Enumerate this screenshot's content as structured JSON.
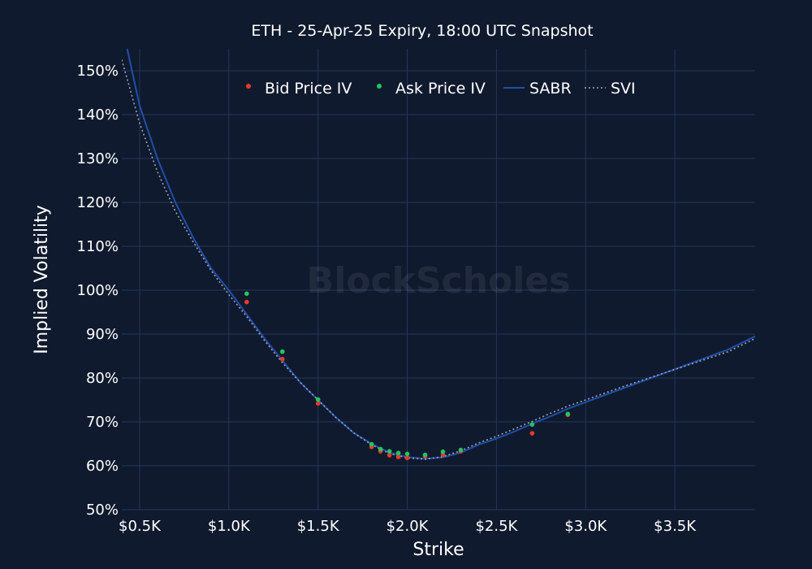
{
  "chart_data": {
    "type": "scatter",
    "title": "ETH - 25-Apr-25 Expiry, 18:00 UTC Snapshot",
    "xlabel": "Strike",
    "ylabel": "Implied Volatility",
    "watermark": "BlockScholes",
    "xlim": [
      0.4,
      3.95
    ],
    "ylim": [
      50,
      155
    ],
    "x_ticks": [
      {
        "value": 0.5,
        "label": "$0.5K"
      },
      {
        "value": 1.0,
        "label": "$1.0K"
      },
      {
        "value": 1.5,
        "label": "$1.5K"
      },
      {
        "value": 2.0,
        "label": "$2.0K"
      },
      {
        "value": 2.5,
        "label": "$2.5K"
      },
      {
        "value": 3.0,
        "label": "$3.0K"
      },
      {
        "value": 3.5,
        "label": "$3.5K"
      }
    ],
    "y_ticks": [
      {
        "value": 50,
        "label": "50%"
      },
      {
        "value": 60,
        "label": "60%"
      },
      {
        "value": 70,
        "label": "70%"
      },
      {
        "value": 80,
        "label": "80%"
      },
      {
        "value": 90,
        "label": "90%"
      },
      {
        "value": 100,
        "label": "100%"
      },
      {
        "value": 110,
        "label": "110%"
      },
      {
        "value": 120,
        "label": "120%"
      },
      {
        "value": 130,
        "label": "130%"
      },
      {
        "value": 140,
        "label": "140%"
      },
      {
        "value": 150,
        "label": "150%"
      }
    ],
    "legend_position": "top-center",
    "grid": true,
    "series": [
      {
        "name": "Bid Price IV",
        "kind": "markers",
        "color": "#e8392a",
        "x": [
          1.1,
          1.3,
          1.5,
          1.8,
          1.85,
          1.9,
          1.95,
          2.0,
          2.1,
          2.2,
          2.3,
          2.7,
          2.9
        ],
        "y": [
          97.3,
          84.3,
          74.2,
          64.3,
          63.3,
          62.4,
          62.0,
          61.8,
          62.2,
          62.5,
          63.3,
          67.4,
          71.6
        ]
      },
      {
        "name": "Ask Price IV",
        "kind": "markers",
        "color": "#22c55e",
        "x": [
          1.1,
          1.3,
          1.5,
          1.8,
          1.85,
          1.9,
          1.95,
          2.0,
          2.1,
          2.2,
          2.3,
          2.7,
          2.9
        ],
        "y": [
          99.2,
          86.0,
          75.1,
          64.9,
          63.8,
          63.3,
          62.9,
          62.7,
          62.5,
          63.2,
          63.6,
          69.4,
          71.8
        ]
      },
      {
        "name": "SABR",
        "kind": "line",
        "color": "#1f4fa8",
        "x": [
          0.43,
          0.5,
          0.6,
          0.7,
          0.8,
          0.9,
          1.0,
          1.1,
          1.2,
          1.3,
          1.4,
          1.5,
          1.6,
          1.7,
          1.8,
          1.9,
          2.0,
          2.1,
          2.2,
          2.3,
          2.4,
          2.5,
          2.6,
          2.7,
          2.8,
          2.9,
          3.0,
          3.2,
          3.4,
          3.6,
          3.8,
          3.95
        ],
        "y": [
          155,
          142,
          130,
          120,
          112,
          105,
          100,
          94.5,
          89,
          84,
          79,
          75,
          71,
          67.5,
          65,
          63,
          62,
          61.6,
          61.9,
          63,
          64.8,
          66.2,
          67.8,
          69.6,
          71.2,
          73,
          74.5,
          77.5,
          80.5,
          83.5,
          86.5,
          89.5
        ]
      },
      {
        "name": "SVI",
        "kind": "dotted-line",
        "color": "#9aa3b5",
        "x": [
          0.4,
          0.5,
          0.6,
          0.7,
          0.8,
          0.9,
          1.0,
          1.1,
          1.2,
          1.3,
          1.4,
          1.5,
          1.6,
          1.7,
          1.8,
          1.9,
          2.0,
          2.1,
          2.2,
          2.3,
          2.4,
          2.5,
          2.6,
          2.7,
          2.8,
          2.9,
          3.0,
          3.2,
          3.4,
          3.6,
          3.8,
          3.95
        ],
        "y": [
          152.5,
          138,
          127,
          118,
          111,
          104.5,
          99,
          94,
          88.5,
          83.5,
          79,
          75,
          71,
          67.5,
          64.8,
          62.8,
          61.8,
          61.5,
          62.1,
          63.4,
          65.2,
          66.7,
          68.4,
          70.1,
          71.9,
          73.6,
          75,
          77.9,
          80.6,
          83.3,
          86,
          89
        ]
      }
    ]
  }
}
